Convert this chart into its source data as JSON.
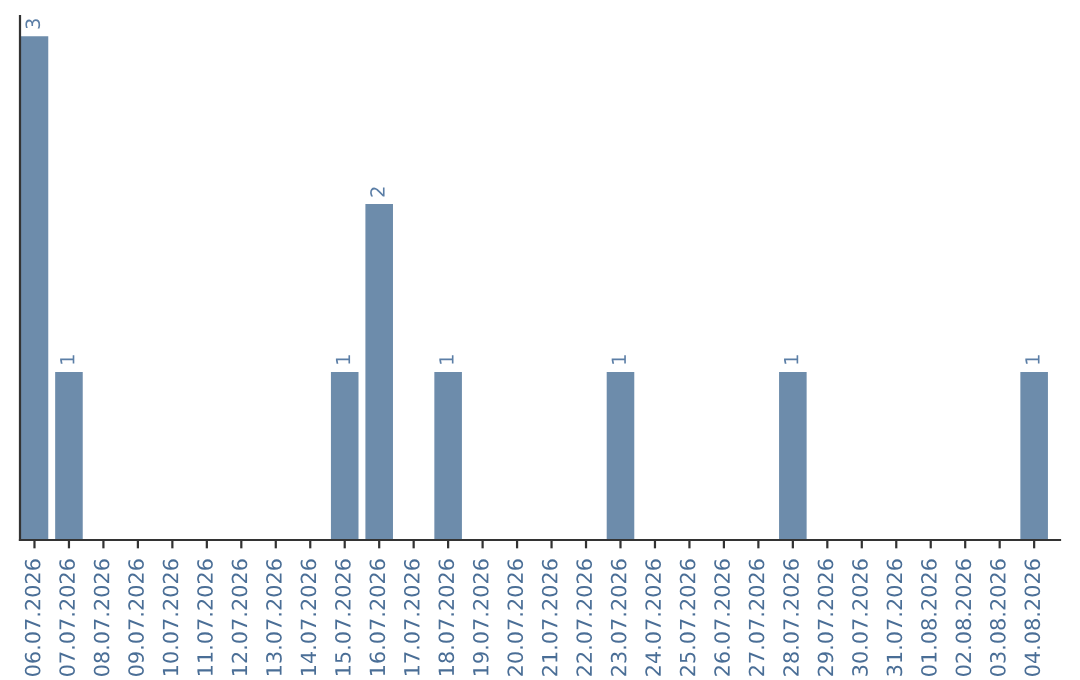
{
  "chart_data": {
    "type": "bar",
    "categories": [
      "06.07.2026",
      "07.07.2026",
      "08.07.2026",
      "09.07.2026",
      "10.07.2026",
      "11.07.2026",
      "12.07.2026",
      "13.07.2026",
      "14.07.2026",
      "15.07.2026",
      "16.07.2026",
      "17.07.2026",
      "18.07.2026",
      "19.07.2026",
      "20.07.2026",
      "21.07.2026",
      "22.07.2026",
      "23.07.2026",
      "24.07.2026",
      "25.07.2026",
      "26.07.2026",
      "27.07.2026",
      "28.07.2026",
      "29.07.2026",
      "30.07.2026",
      "31.07.2026",
      "01.08.2026",
      "02.08.2026",
      "03.08.2026",
      "04.08.2026"
    ],
    "values": [
      3,
      1,
      0,
      0,
      0,
      0,
      0,
      0,
      0,
      1,
      2,
      0,
      1,
      0,
      0,
      0,
      0,
      1,
      0,
      0,
      0,
      0,
      1,
      0,
      0,
      0,
      0,
      0,
      0,
      1
    ],
    "color": "#6d8cab",
    "value_labels": [
      "3",
      "1",
      null,
      null,
      null,
      null,
      null,
      null,
      null,
      "1",
      "2",
      null,
      "1",
      null,
      null,
      null,
      null,
      "1",
      null,
      null,
      null,
      null,
      "1",
      null,
      null,
      null,
      null,
      null,
      null,
      "1"
    ],
    "grid": false
  }
}
